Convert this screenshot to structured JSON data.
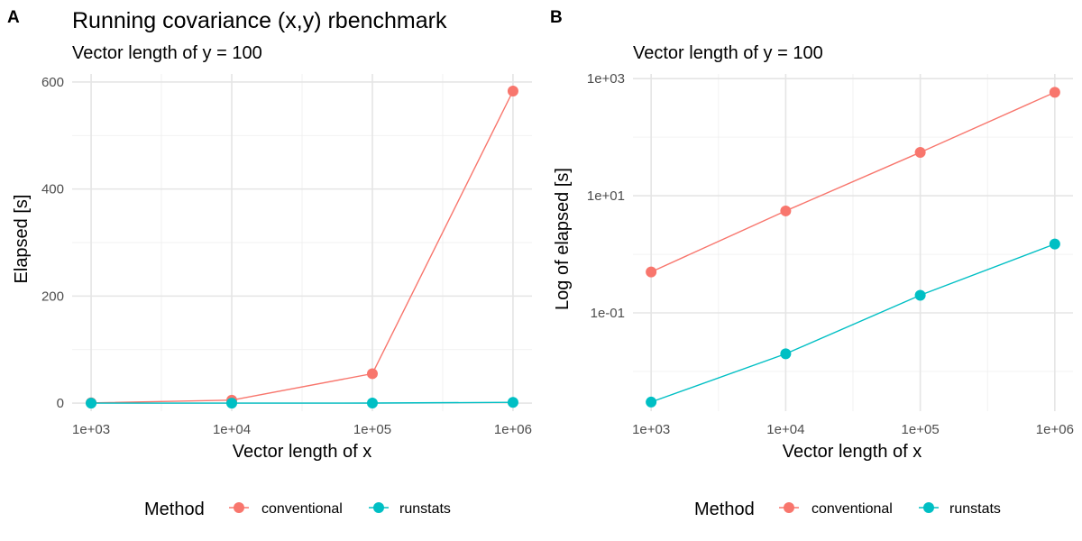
{
  "colors": {
    "conventional": "#F8766D",
    "runstats": "#00BFC4"
  },
  "legend": {
    "title": "Method",
    "items": [
      {
        "key": "conventional",
        "label": "conventional"
      },
      {
        "key": "runstats",
        "label": "runstats"
      }
    ]
  },
  "chart_data": [
    {
      "panel": "A",
      "type": "line",
      "title": "Running covariance (x,y) rbenchmark",
      "subtitle": "Vector length of y = 100",
      "xlabel": "Vector length of x",
      "ylabel": "Elapsed [s]",
      "x_scale": "log10",
      "y_scale": "linear",
      "x": [
        1000,
        10000,
        100000,
        1000000
      ],
      "x_tick_labels": [
        "1e+03",
        "1e+04",
        "1e+05",
        "1e+06"
      ],
      "y_ticks": [
        0,
        200,
        400,
        600
      ],
      "y_tick_labels": [
        "0",
        "200",
        "400",
        "600"
      ],
      "ylim": [
        -15,
        615
      ],
      "grid": true,
      "legend_position": "bottom",
      "series": [
        {
          "name": "conventional",
          "values": [
            0.5,
            5.5,
            55,
            583
          ]
        },
        {
          "name": "runstats",
          "values": [
            0.003,
            0.02,
            0.2,
            1.5
          ]
        }
      ]
    },
    {
      "panel": "B",
      "type": "line",
      "title": "",
      "subtitle": "Vector length of y = 100",
      "xlabel": "Vector length of x",
      "ylabel": "Log of elapsed [s]",
      "x_scale": "log10",
      "y_scale": "log10",
      "x": [
        1000,
        10000,
        100000,
        1000000
      ],
      "x_tick_labels": [
        "1e+03",
        "1e+04",
        "1e+05",
        "1e+06"
      ],
      "y_ticks": [
        0.1,
        10,
        1000
      ],
      "y_tick_labels": [
        "1e-01",
        "1e+01",
        "1e+03"
      ],
      "ylim": [
        0.0021,
        1200
      ],
      "grid": true,
      "legend_position": "bottom",
      "series": [
        {
          "name": "conventional",
          "values": [
            0.5,
            5.5,
            55,
            583
          ]
        },
        {
          "name": "runstats",
          "values": [
            0.003,
            0.02,
            0.2,
            1.5
          ]
        }
      ]
    }
  ]
}
